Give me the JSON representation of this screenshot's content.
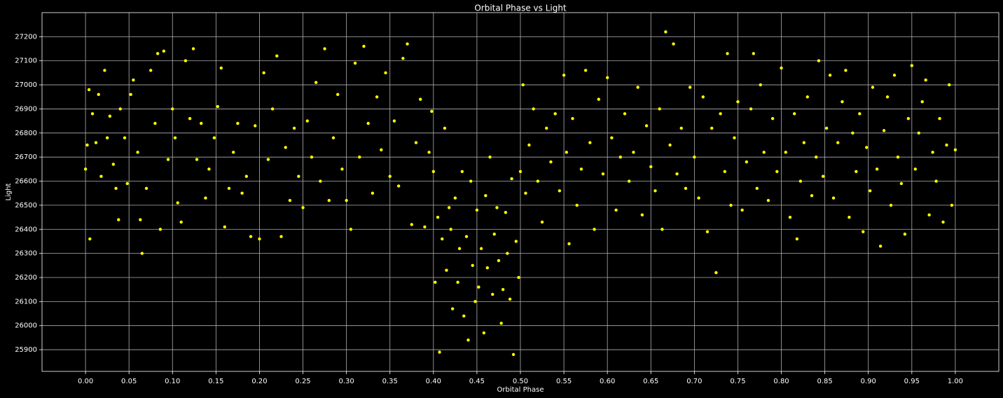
{
  "chart_data": {
    "type": "scatter",
    "title": "Orbital Phase vs Light",
    "x_label": "Orbital Phase",
    "y_label": "Light",
    "color": "#ffff00",
    "grid": true,
    "xlim": [
      -0.05,
      1.05
    ],
    "ylim": [
      25810,
      27300
    ],
    "xticks": [
      {
        "value": 0,
        "label": "0.00"
      },
      0.05,
      {
        "value": 0.1,
        "label": "0.10"
      },
      0.15,
      {
        "value": 0.2,
        "label": "0.20"
      },
      0.25,
      {
        "value": 0.3,
        "label": "0.30"
      },
      0.35,
      {
        "value": 0.4,
        "label": "0.40"
      },
      0.45,
      {
        "value": 0.5,
        "label": "0.50"
      },
      0.55,
      {
        "value": 0.6,
        "label": "0.60"
      },
      0.65,
      {
        "value": 0.7,
        "label": "0.70"
      },
      0.75,
      {
        "value": 0.8,
        "label": "0.80"
      },
      0.85,
      {
        "value": 0.9,
        "label": "0.90"
      },
      0.95,
      {
        "value": 1,
        "label": "1.00"
      }
    ],
    "yticks": [
      25900,
      26000,
      26100,
      26200,
      26300,
      26400,
      26500,
      26600,
      26700,
      26800,
      26900,
      27000,
      27100,
      27200
    ],
    "x": [
      0.0,
      0.002,
      0.004,
      0.005,
      0.008,
      0.012,
      0.015,
      0.018,
      0.022,
      0.025,
      0.028,
      0.032,
      0.035,
      0.038,
      0.04,
      0.045,
      0.048,
      0.052,
      0.055,
      0.06,
      0.063,
      0.065,
      0.07,
      0.075,
      0.08,
      0.083,
      0.086,
      0.09,
      0.095,
      0.1,
      0.103,
      0.106,
      0.11,
      0.115,
      0.12,
      0.124,
      0.128,
      0.133,
      0.138,
      0.142,
      0.148,
      0.152,
      0.156,
      0.16,
      0.165,
      0.17,
      0.175,
      0.18,
      0.185,
      0.19,
      0.195,
      0.2,
      0.205,
      0.21,
      0.215,
      0.22,
      0.225,
      0.23,
      0.235,
      0.24,
      0.245,
      0.25,
      0.255,
      0.26,
      0.265,
      0.27,
      0.275,
      0.28,
      0.285,
      0.29,
      0.295,
      0.3,
      0.305,
      0.31,
      0.315,
      0.32,
      0.325,
      0.33,
      0.335,
      0.34,
      0.345,
      0.35,
      0.355,
      0.36,
      0.365,
      0.37,
      0.375,
      0.38,
      0.385,
      0.39,
      0.395,
      0.398,
      0.4,
      0.402,
      0.405,
      0.407,
      0.41,
      0.413,
      0.415,
      0.418,
      0.42,
      0.422,
      0.425,
      0.428,
      0.43,
      0.433,
      0.435,
      0.438,
      0.44,
      0.443,
      0.445,
      0.448,
      0.45,
      0.452,
      0.455,
      0.458,
      0.46,
      0.462,
      0.465,
      0.468,
      0.47,
      0.473,
      0.475,
      0.478,
      0.48,
      0.483,
      0.485,
      0.488,
      0.49,
      0.492,
      0.495,
      0.498,
      0.5,
      0.503,
      0.506,
      0.51,
      0.515,
      0.52,
      0.525,
      0.53,
      0.535,
      0.54,
      0.545,
      0.55,
      0.553,
      0.556,
      0.56,
      0.565,
      0.57,
      0.575,
      0.58,
      0.585,
      0.59,
      0.595,
      0.6,
      0.605,
      0.61,
      0.615,
      0.62,
      0.625,
      0.63,
      0.635,
      0.64,
      0.645,
      0.65,
      0.655,
      0.66,
      0.663,
      0.667,
      0.672,
      0.676,
      0.68,
      0.685,
      0.69,
      0.695,
      0.7,
      0.705,
      0.71,
      0.715,
      0.72,
      0.725,
      0.73,
      0.735,
      0.738,
      0.742,
      0.746,
      0.75,
      0.755,
      0.76,
      0.765,
      0.768,
      0.772,
      0.776,
      0.78,
      0.785,
      0.79,
      0.795,
      0.8,
      0.805,
      0.81,
      0.815,
      0.818,
      0.822,
      0.826,
      0.83,
      0.835,
      0.84,
      0.843,
      0.848,
      0.852,
      0.856,
      0.86,
      0.865,
      0.87,
      0.874,
      0.878,
      0.882,
      0.886,
      0.89,
      0.894,
      0.898,
      0.902,
      0.905,
      0.91,
      0.914,
      0.918,
      0.922,
      0.926,
      0.93,
      0.934,
      0.938,
      0.942,
      0.946,
      0.95,
      0.954,
      0.958,
      0.962,
      0.966,
      0.97,
      0.974,
      0.978,
      0.982,
      0.986,
      0.99,
      0.993,
      0.996,
      1.0
    ],
    "values": [
      26650,
      26750,
      26980,
      26360,
      26880,
      26760,
      26960,
      26620,
      27060,
      26780,
      26870,
      26670,
      26570,
      26440,
      26900,
      26780,
      26590,
      26960,
      27020,
      26720,
      26440,
      26300,
      26570,
      27060,
      26840,
      27130,
      26400,
      27140,
      26690,
      26900,
      26780,
      26510,
      26430,
      27100,
      26860,
      27150,
      26690,
      26840,
      26530,
      26650,
      26780,
      26910,
      27070,
      26410,
      26570,
      26720,
      26840,
      26550,
      26620,
      26370,
      26830,
      26360,
      27050,
      26690,
      26900,
      27120,
      26370,
      26740,
      26520,
      26820,
      26620,
      26490,
      26850,
      26700,
      27010,
      26600,
      27150,
      26520,
      26780,
      26960,
      26650,
      26520,
      26400,
      27090,
      26700,
      27160,
      26840,
      26550,
      26950,
      26730,
      27050,
      26620,
      26850,
      26580,
      27110,
      27170,
      26420,
      26760,
      26940,
      26410,
      26720,
      26890,
      26640,
      26180,
      26450,
      25890,
      26360,
      26820,
      26230,
      26490,
      26400,
      26070,
      26530,
      26180,
      26320,
      26640,
      26040,
      26370,
      25940,
      26600,
      26250,
      26100,
      26480,
      26160,
      26320,
      25970,
      26540,
      26240,
      26700,
      26130,
      26380,
      26490,
      26270,
      26010,
      26150,
      26470,
      26300,
      26110,
      26610,
      25880,
      26350,
      26200,
      26640,
      27000,
      26550,
      26750,
      26900,
      26600,
      26430,
      26820,
      26680,
      26880,
      26560,
      27040,
      26720,
      26340,
      26860,
      26500,
      26650,
      27060,
      26760,
      26400,
      26940,
      26630,
      27030,
      26780,
      26480,
      26700,
      26880,
      26600,
      26720,
      26990,
      26460,
      26830,
      26660,
      26560,
      26900,
      26400,
      27220,
      26750,
      27170,
      26630,
      26820,
      26570,
      26990,
      26700,
      26530,
      26950,
      26390,
      26820,
      26220,
      26880,
      26640,
      27130,
      26500,
      26780,
      26930,
      26480,
      26680,
      26900,
      27130,
      26570,
      27000,
      26720,
      26520,
      26860,
      26640,
      27070,
      26720,
      26450,
      26880,
      26360,
      26600,
      26760,
      26950,
      26540,
      26700,
      27100,
      26620,
      26820,
      27040,
      26530,
      26760,
      26930,
      27060,
      26450,
      26800,
      26640,
      26880,
      26390,
      26740,
      26560,
      26990,
      26650,
      26330,
      26810,
      26950,
      26500,
      27040,
      26700,
      26590,
      26380,
      26860,
      27080,
      26650,
      26800,
      26930,
      27020,
      26460,
      26720,
      26600,
      26860,
      26430,
      26750,
      27000,
      26500,
      26730
    ]
  }
}
